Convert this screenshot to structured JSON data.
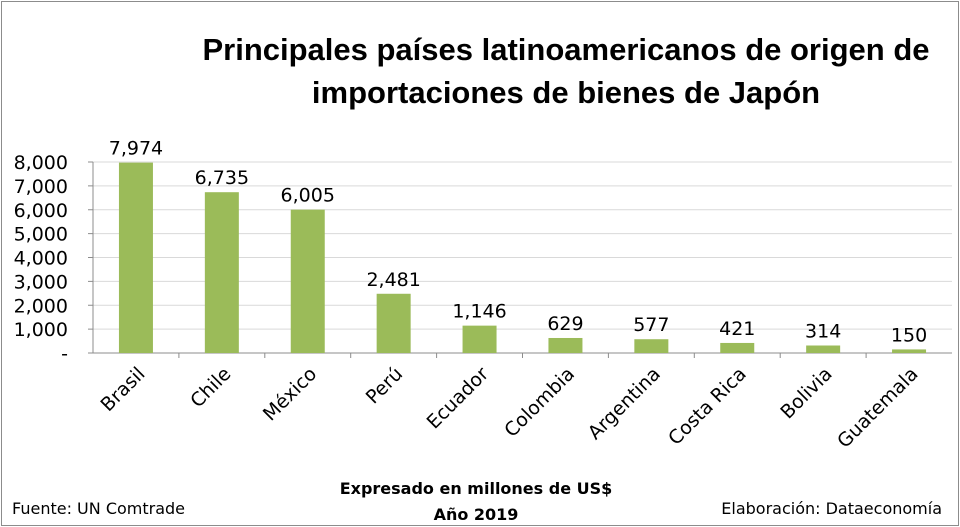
{
  "chart_data": {
    "type": "bar",
    "title_lines": [
      "Principales países latinoamericanos de origen de",
      "importaciones de bienes de Japón"
    ],
    "categories": [
      "Brasil",
      "Chile",
      "México",
      "Perú",
      "Ecuador",
      "Colombia",
      "Argentina",
      "Costa Rica",
      "Bolivia",
      "Guatemala"
    ],
    "values": [
      7974,
      6735,
      6005,
      2481,
      1146,
      629,
      577,
      421,
      314,
      150
    ],
    "value_labels": [
      "7,974",
      "6,735",
      "6,005",
      "2,481",
      "1,146",
      "629",
      "577",
      "421",
      "314",
      "150"
    ],
    "y_ticks": [
      "-",
      "1,000",
      "2,000",
      "3,000",
      "4,000",
      "5,000",
      "6,000",
      "7,000",
      "8,000"
    ],
    "ylim": [
      0,
      8000
    ],
    "grid": true,
    "bar_color": "#9bbb59",
    "xlabel_lines": [
      "Expresado en millones de US$",
      "Año 2019"
    ]
  },
  "footer": {
    "source": "Fuente: UN Comtrade",
    "credit": "Elaboración: Dataeconomía"
  }
}
